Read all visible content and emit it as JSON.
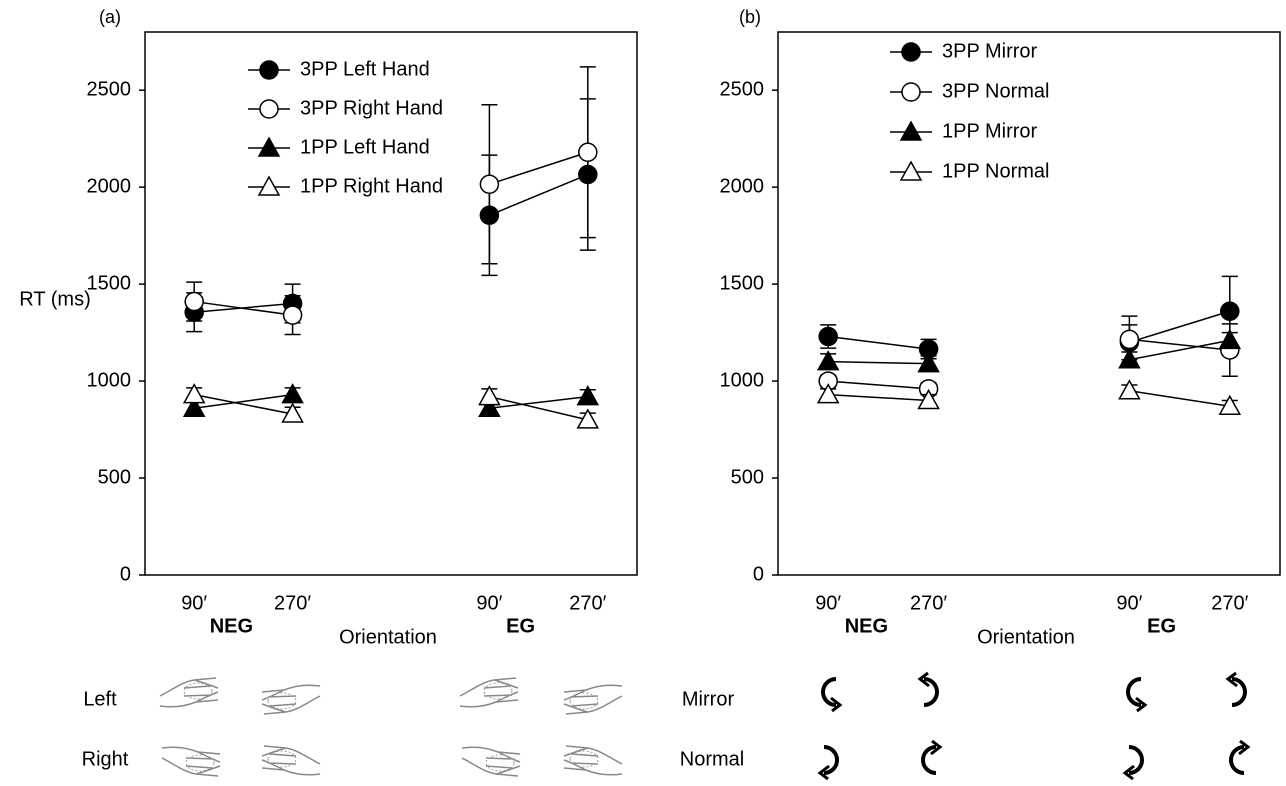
{
  "chart_data": [
    {
      "type": "line",
      "panel_label": "(a)",
      "ylabel": "RT (ms)",
      "xlabel": "Orientation",
      "categories": [
        "90′",
        "270′",
        null,
        "90′",
        "270′"
      ],
      "group_labels": [
        "NEG",
        "EG"
      ],
      "ylim": [
        0,
        2800
      ],
      "yticks": [
        0,
        500,
        1000,
        1500,
        2000,
        2500
      ],
      "legend": "upper left",
      "series": [
        {
          "name": "3PP Left Hand",
          "color": "#000000",
          "marker": "circle",
          "filled": true,
          "values": [
            1355,
            1400,
            null,
            1855,
            2065
          ],
          "errors": [
            100,
            100,
            null,
            310,
            390
          ]
        },
        {
          "name": "3PP Right Hand",
          "color": "#000000",
          "marker": "circle",
          "filled": false,
          "values": [
            1410,
            1340,
            null,
            2015,
            2180
          ],
          "errors": [
            100,
            100,
            null,
            410,
            440
          ]
        },
        {
          "name": "1PP Left Hand",
          "color": "#000000",
          "marker": "triangle",
          "filled": true,
          "values": [
            860,
            930,
            null,
            860,
            920
          ],
          "errors": [
            30,
            35,
            null,
            30,
            35
          ]
        },
        {
          "name": "1PP Right Hand",
          "color": "#000000",
          "marker": "triangle",
          "filled": false,
          "values": [
            930,
            830,
            null,
            920,
            800
          ],
          "errors": [
            35,
            35,
            null,
            40,
            35
          ]
        }
      ]
    },
    {
      "type": "line",
      "panel_label": "(b)",
      "xlabel": "Orientation",
      "categories": [
        "90′",
        "270′",
        null,
        "90′",
        "270′"
      ],
      "group_labels": [
        "NEG",
        "EG"
      ],
      "ylim": [
        0,
        2800
      ],
      "yticks": [
        0,
        500,
        1000,
        1500,
        2000,
        2500
      ],
      "legend": "upper left",
      "series": [
        {
          "name": "3PP Mirror",
          "color": "#000000",
          "marker": "circle",
          "filled": true,
          "values": [
            1230,
            1165,
            null,
            1200,
            1360
          ],
          "errors": [
            60,
            50,
            null,
            90,
            180
          ]
        },
        {
          "name": "3PP Normal",
          "color": "#000000",
          "marker": "circle",
          "filled": false,
          "values": [
            1000,
            960,
            null,
            1215,
            1160
          ],
          "errors": [
            30,
            30,
            null,
            120,
            135
          ]
        },
        {
          "name": "1PP Mirror",
          "color": "#000000",
          "marker": "triangle",
          "filled": true,
          "values": [
            1100,
            1090,
            null,
            1110,
            1210
          ],
          "errors": [
            40,
            40,
            null,
            40,
            40
          ]
        },
        {
          "name": "1PP Normal",
          "color": "#000000",
          "marker": "triangle",
          "filled": false,
          "values": [
            930,
            900,
            null,
            950,
            870
          ],
          "errors": [
            30,
            30,
            null,
            30,
            30
          ]
        }
      ]
    }
  ],
  "stimulus_legend": {
    "hands": [
      "Left",
      "Right"
    ],
    "letters": [
      "Mirror",
      "Normal"
    ]
  }
}
